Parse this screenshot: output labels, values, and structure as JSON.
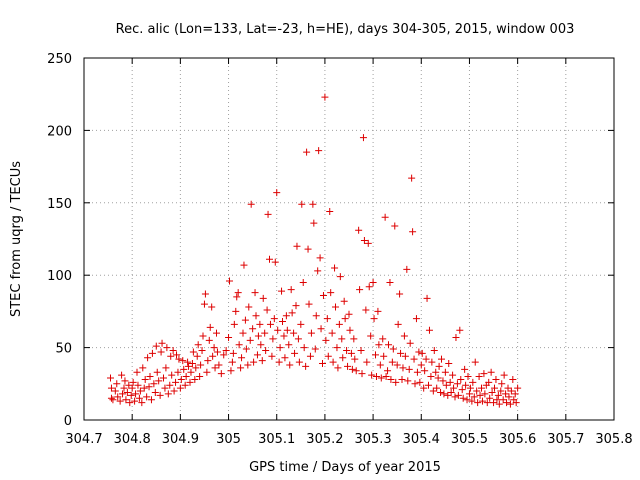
{
  "chart_data": {
    "type": "scatter",
    "title": "Rec. alic (Lon=133, Lat=-23, h=HE), days 304-305, 2015, window 003",
    "xlabel": "GPS time / Days of year 2015",
    "ylabel": "STEC from uqrg / TECUs",
    "xlim": [
      304.7,
      305.8
    ],
    "ylim": [
      0,
      250
    ],
    "x_ticks": [
      304.7,
      304.8,
      304.9,
      305.0,
      305.1,
      305.2,
      305.3,
      305.4,
      305.5,
      305.6,
      305.7,
      305.8
    ],
    "x_tick_labels": [
      "304.7",
      "304.8",
      "304.9",
      "305",
      "305.1",
      "305.2",
      "305.3",
      "305.4",
      "305.5",
      "305.6",
      "305.7",
      "305.8"
    ],
    "y_ticks": [
      0,
      50,
      100,
      150,
      200,
      250
    ],
    "y_tick_labels": [
      "0",
      "50",
      "100",
      "150",
      "200",
      "250"
    ],
    "grid": true,
    "marker": "+",
    "color": "#dd0000",
    "points": [
      [
        304.755,
        29
      ],
      [
        304.757,
        22
      ],
      [
        304.757,
        15
      ],
      [
        304.76,
        14
      ],
      [
        304.765,
        20
      ],
      [
        304.768,
        25
      ],
      [
        304.77,
        16
      ],
      [
        304.775,
        13
      ],
      [
        304.778,
        31
      ],
      [
        304.78,
        18
      ],
      [
        304.783,
        22
      ],
      [
        304.785,
        27
      ],
      [
        304.787,
        14
      ],
      [
        304.79,
        19
      ],
      [
        304.793,
        24
      ],
      [
        304.795,
        12
      ],
      [
        304.798,
        17
      ],
      [
        304.8,
        22
      ],
      [
        304.802,
        26
      ],
      [
        304.805,
        13
      ],
      [
        304.807,
        18
      ],
      [
        304.81,
        33
      ],
      [
        304.812,
        24
      ],
      [
        304.815,
        15
      ],
      [
        304.817,
        20
      ],
      [
        304.82,
        12
      ],
      [
        304.822,
        36
      ],
      [
        304.825,
        22
      ],
      [
        304.827,
        28
      ],
      [
        304.83,
        16
      ],
      [
        304.832,
        43
      ],
      [
        304.835,
        23
      ],
      [
        304.837,
        30
      ],
      [
        304.84,
        14
      ],
      [
        304.842,
        46
      ],
      [
        304.845,
        25
      ],
      [
        304.848,
        19
      ],
      [
        304.85,
        51
      ],
      [
        304.852,
        33
      ],
      [
        304.855,
        27
      ],
      [
        304.858,
        17
      ],
      [
        304.86,
        47
      ],
      [
        304.862,
        53
      ],
      [
        304.865,
        29
      ],
      [
        304.868,
        22
      ],
      [
        304.87,
        36
      ],
      [
        304.872,
        50
      ],
      [
        304.875,
        18
      ],
      [
        304.878,
        24
      ],
      [
        304.88,
        44
      ],
      [
        304.882,
        31
      ],
      [
        304.885,
        48
      ],
      [
        304.887,
        20
      ],
      [
        304.89,
        26
      ],
      [
        304.892,
        45
      ],
      [
        304.895,
        33
      ],
      [
        304.897,
        42
      ],
      [
        304.9,
        22
      ],
      [
        304.902,
        28
      ],
      [
        304.905,
        41
      ],
      [
        304.907,
        35
      ],
      [
        304.91,
        24
      ],
      [
        304.912,
        30
      ],
      [
        304.915,
        40
      ],
      [
        304.917,
        37
      ],
      [
        304.92,
        26
      ],
      [
        304.922,
        33
      ],
      [
        304.925,
        39
      ],
      [
        304.927,
        47
      ],
      [
        304.93,
        28
      ],
      [
        304.932,
        36
      ],
      [
        304.935,
        44
      ],
      [
        304.937,
        52
      ],
      [
        304.94,
        30
      ],
      [
        304.942,
        38
      ],
      [
        304.945,
        48
      ],
      [
        304.947,
        58
      ],
      [
        304.95,
        80
      ],
      [
        304.952,
        87
      ],
      [
        304.955,
        33
      ],
      [
        304.957,
        41
      ],
      [
        304.96,
        55
      ],
      [
        304.962,
        64
      ],
      [
        304.965,
        78
      ],
      [
        304.967,
        44
      ],
      [
        304.97,
        50
      ],
      [
        304.972,
        36
      ],
      [
        304.975,
        60
      ],
      [
        304.977,
        47
      ],
      [
        304.98,
        38
      ],
      [
        304.985,
        32
      ],
      [
        304.99,
        45
      ],
      [
        304.995,
        48
      ],
      [
        305.0,
        57
      ],
      [
        305.002,
        96
      ],
      [
        305.005,
        34
      ],
      [
        305.008,
        40
      ],
      [
        305.01,
        46
      ],
      [
        305.012,
        66
      ],
      [
        305.015,
        75
      ],
      [
        305.017,
        85
      ],
      [
        305.02,
        88
      ],
      [
        305.022,
        52
      ],
      [
        305.025,
        36
      ],
      [
        305.027,
        43
      ],
      [
        305.03,
        60
      ],
      [
        305.032,
        107
      ],
      [
        305.035,
        69
      ],
      [
        305.037,
        49
      ],
      [
        305.04,
        38
      ],
      [
        305.042,
        78
      ],
      [
        305.045,
        55
      ],
      [
        305.047,
        149
      ],
      [
        305.05,
        63
      ],
      [
        305.052,
        40
      ],
      [
        305.055,
        88
      ],
      [
        305.057,
        72
      ],
      [
        305.06,
        45
      ],
      [
        305.062,
        58
      ],
      [
        305.065,
        66
      ],
      [
        305.067,
        52
      ],
      [
        305.07,
        41
      ],
      [
        305.072,
        84
      ],
      [
        305.075,
        60
      ],
      [
        305.077,
        48
      ],
      [
        305.08,
        76
      ],
      [
        305.082,
        142
      ],
      [
        305.085,
        111
      ],
      [
        305.087,
        66
      ],
      [
        305.09,
        44
      ],
      [
        305.092,
        56
      ],
      [
        305.095,
        70
      ],
      [
        305.097,
        109
      ],
      [
        305.1,
        157
      ],
      [
        305.102,
        62
      ],
      [
        305.105,
        40
      ],
      [
        305.107,
        50
      ],
      [
        305.11,
        89
      ],
      [
        305.112,
        68
      ],
      [
        305.115,
        58
      ],
      [
        305.117,
        43
      ],
      [
        305.12,
        72
      ],
      [
        305.122,
        62
      ],
      [
        305.125,
        52
      ],
      [
        305.127,
        38
      ],
      [
        305.13,
        90
      ],
      [
        305.132,
        74
      ],
      [
        305.135,
        60
      ],
      [
        305.137,
        46
      ],
      [
        305.14,
        79
      ],
      [
        305.142,
        120
      ],
      [
        305.145,
        56
      ],
      [
        305.147,
        40
      ],
      [
        305.15,
        66
      ],
      [
        305.152,
        149
      ],
      [
        305.155,
        95
      ],
      [
        305.157,
        50
      ],
      [
        305.16,
        37
      ],
      [
        305.162,
        185
      ],
      [
        305.165,
        118
      ],
      [
        305.167,
        80
      ],
      [
        305.17,
        44
      ],
      [
        305.172,
        60
      ],
      [
        305.175,
        149
      ],
      [
        305.177,
        136
      ],
      [
        305.18,
        49
      ],
      [
        305.182,
        72
      ],
      [
        305.185,
        103
      ],
      [
        305.187,
        186
      ],
      [
        305.19,
        112
      ],
      [
        305.192,
        63
      ],
      [
        305.195,
        39
      ],
      [
        305.197,
        86
      ],
      [
        305.2,
        223
      ],
      [
        305.202,
        55
      ],
      [
        305.205,
        70
      ],
      [
        305.207,
        44
      ],
      [
        305.21,
        144
      ],
      [
        305.212,
        88
      ],
      [
        305.215,
        60
      ],
      [
        305.217,
        40
      ],
      [
        305.22,
        105
      ],
      [
        305.222,
        78
      ],
      [
        305.225,
        50
      ],
      [
        305.227,
        36
      ],
      [
        305.23,
        66
      ],
      [
        305.232,
        99
      ],
      [
        305.235,
        56
      ],
      [
        305.237,
        43
      ],
      [
        305.24,
        82
      ],
      [
        305.242,
        70
      ],
      [
        305.245,
        48
      ],
      [
        305.247,
        37
      ],
      [
        305.25,
        73
      ],
      [
        305.252,
        62
      ],
      [
        305.255,
        46
      ],
      [
        305.257,
        35
      ],
      [
        305.26,
        56
      ],
      [
        305.262,
        42
      ],
      [
        305.265,
        34
      ],
      [
        305.27,
        131
      ],
      [
        305.272,
        90
      ],
      [
        305.275,
        48
      ],
      [
        305.277,
        32
      ],
      [
        305.28,
        195
      ],
      [
        305.282,
        124
      ],
      [
        305.285,
        76
      ],
      [
        305.287,
        40
      ],
      [
        305.29,
        122
      ],
      [
        305.292,
        92
      ],
      [
        305.295,
        58
      ],
      [
        305.297,
        31
      ],
      [
        305.3,
        95
      ],
      [
        305.302,
        70
      ],
      [
        305.305,
        45
      ],
      [
        305.307,
        30
      ],
      [
        305.31,
        75
      ],
      [
        305.312,
        52
      ],
      [
        305.315,
        38
      ],
      [
        305.317,
        29
      ],
      [
        305.32,
        56
      ],
      [
        305.322,
        44
      ],
      [
        305.325,
        140
      ],
      [
        305.327,
        30
      ],
      [
        305.33,
        34
      ],
      [
        305.332,
        52
      ],
      [
        305.335,
        95
      ],
      [
        305.337,
        28
      ],
      [
        305.34,
        40
      ],
      [
        305.342,
        49
      ],
      [
        305.345,
        134
      ],
      [
        305.347,
        26
      ],
      [
        305.35,
        38
      ],
      [
        305.352,
        66
      ],
      [
        305.355,
        87
      ],
      [
        305.357,
        46
      ],
      [
        305.36,
        28
      ],
      [
        305.362,
        36
      ],
      [
        305.365,
        58
      ],
      [
        305.367,
        44
      ],
      [
        305.37,
        104
      ],
      [
        305.372,
        27
      ],
      [
        305.375,
        35
      ],
      [
        305.377,
        53
      ],
      [
        305.38,
        167
      ],
      [
        305.382,
        130
      ],
      [
        305.385,
        42
      ],
      [
        305.387,
        25
      ],
      [
        305.39,
        70
      ],
      [
        305.392,
        33
      ],
      [
        305.395,
        47
      ],
      [
        305.397,
        26
      ],
      [
        305.4,
        38
      ],
      [
        305.402,
        46
      ],
      [
        305.405,
        22
      ],
      [
        305.407,
        34
      ],
      [
        305.41,
        42
      ],
      [
        305.412,
        84
      ],
      [
        305.415,
        24
      ],
      [
        305.417,
        62
      ],
      [
        305.42,
        30
      ],
      [
        305.422,
        40
      ],
      [
        305.425,
        20
      ],
      [
        305.427,
        48
      ],
      [
        305.43,
        33
      ],
      [
        305.432,
        22
      ],
      [
        305.435,
        29
      ],
      [
        305.437,
        37
      ],
      [
        305.44,
        19
      ],
      [
        305.442,
        42
      ],
      [
        305.445,
        27
      ],
      [
        305.447,
        18
      ],
      [
        305.45,
        33
      ],
      [
        305.452,
        24
      ],
      [
        305.455,
        17
      ],
      [
        305.457,
        39
      ],
      [
        305.46,
        26
      ],
      [
        305.462,
        19
      ],
      [
        305.465,
        31
      ],
      [
        305.467,
        22
      ],
      [
        305.47,
        16
      ],
      [
        305.472,
        57
      ],
      [
        305.475,
        25
      ],
      [
        305.477,
        17
      ],
      [
        305.48,
        62
      ],
      [
        305.482,
        28
      ],
      [
        305.485,
        21
      ],
      [
        305.487,
        15
      ],
      [
        305.49,
        35
      ],
      [
        305.492,
        24
      ],
      [
        305.495,
        14
      ],
      [
        305.497,
        30
      ],
      [
        305.5,
        18
      ],
      [
        305.502,
        22
      ],
      [
        305.505,
        13
      ],
      [
        305.507,
        26
      ],
      [
        305.51,
        16
      ],
      [
        305.512,
        40
      ],
      [
        305.515,
        20
      ],
      [
        305.517,
        12
      ],
      [
        305.52,
        30
      ],
      [
        305.522,
        17
      ],
      [
        305.525,
        22
      ],
      [
        305.527,
        13
      ],
      [
        305.53,
        32
      ],
      [
        305.532,
        18
      ],
      [
        305.535,
        24
      ],
      [
        305.537,
        12
      ],
      [
        305.54,
        26
      ],
      [
        305.542,
        15
      ],
      [
        305.545,
        33
      ],
      [
        305.547,
        19
      ],
      [
        305.55,
        12
      ],
      [
        305.552,
        22
      ],
      [
        305.555,
        28
      ],
      [
        305.557,
        14
      ],
      [
        305.56,
        17
      ],
      [
        305.562,
        11
      ],
      [
        305.565,
        20
      ],
      [
        305.567,
        25
      ],
      [
        305.57,
        14
      ],
      [
        305.572,
        31
      ],
      [
        305.575,
        18
      ],
      [
        305.577,
        12
      ],
      [
        305.58,
        22
      ],
      [
        305.582,
        16
      ],
      [
        305.585,
        11
      ],
      [
        305.587,
        20
      ],
      [
        305.59,
        28
      ],
      [
        305.592,
        14
      ],
      [
        305.595,
        18
      ],
      [
        305.597,
        12
      ],
      [
        305.6,
        22
      ]
    ]
  }
}
